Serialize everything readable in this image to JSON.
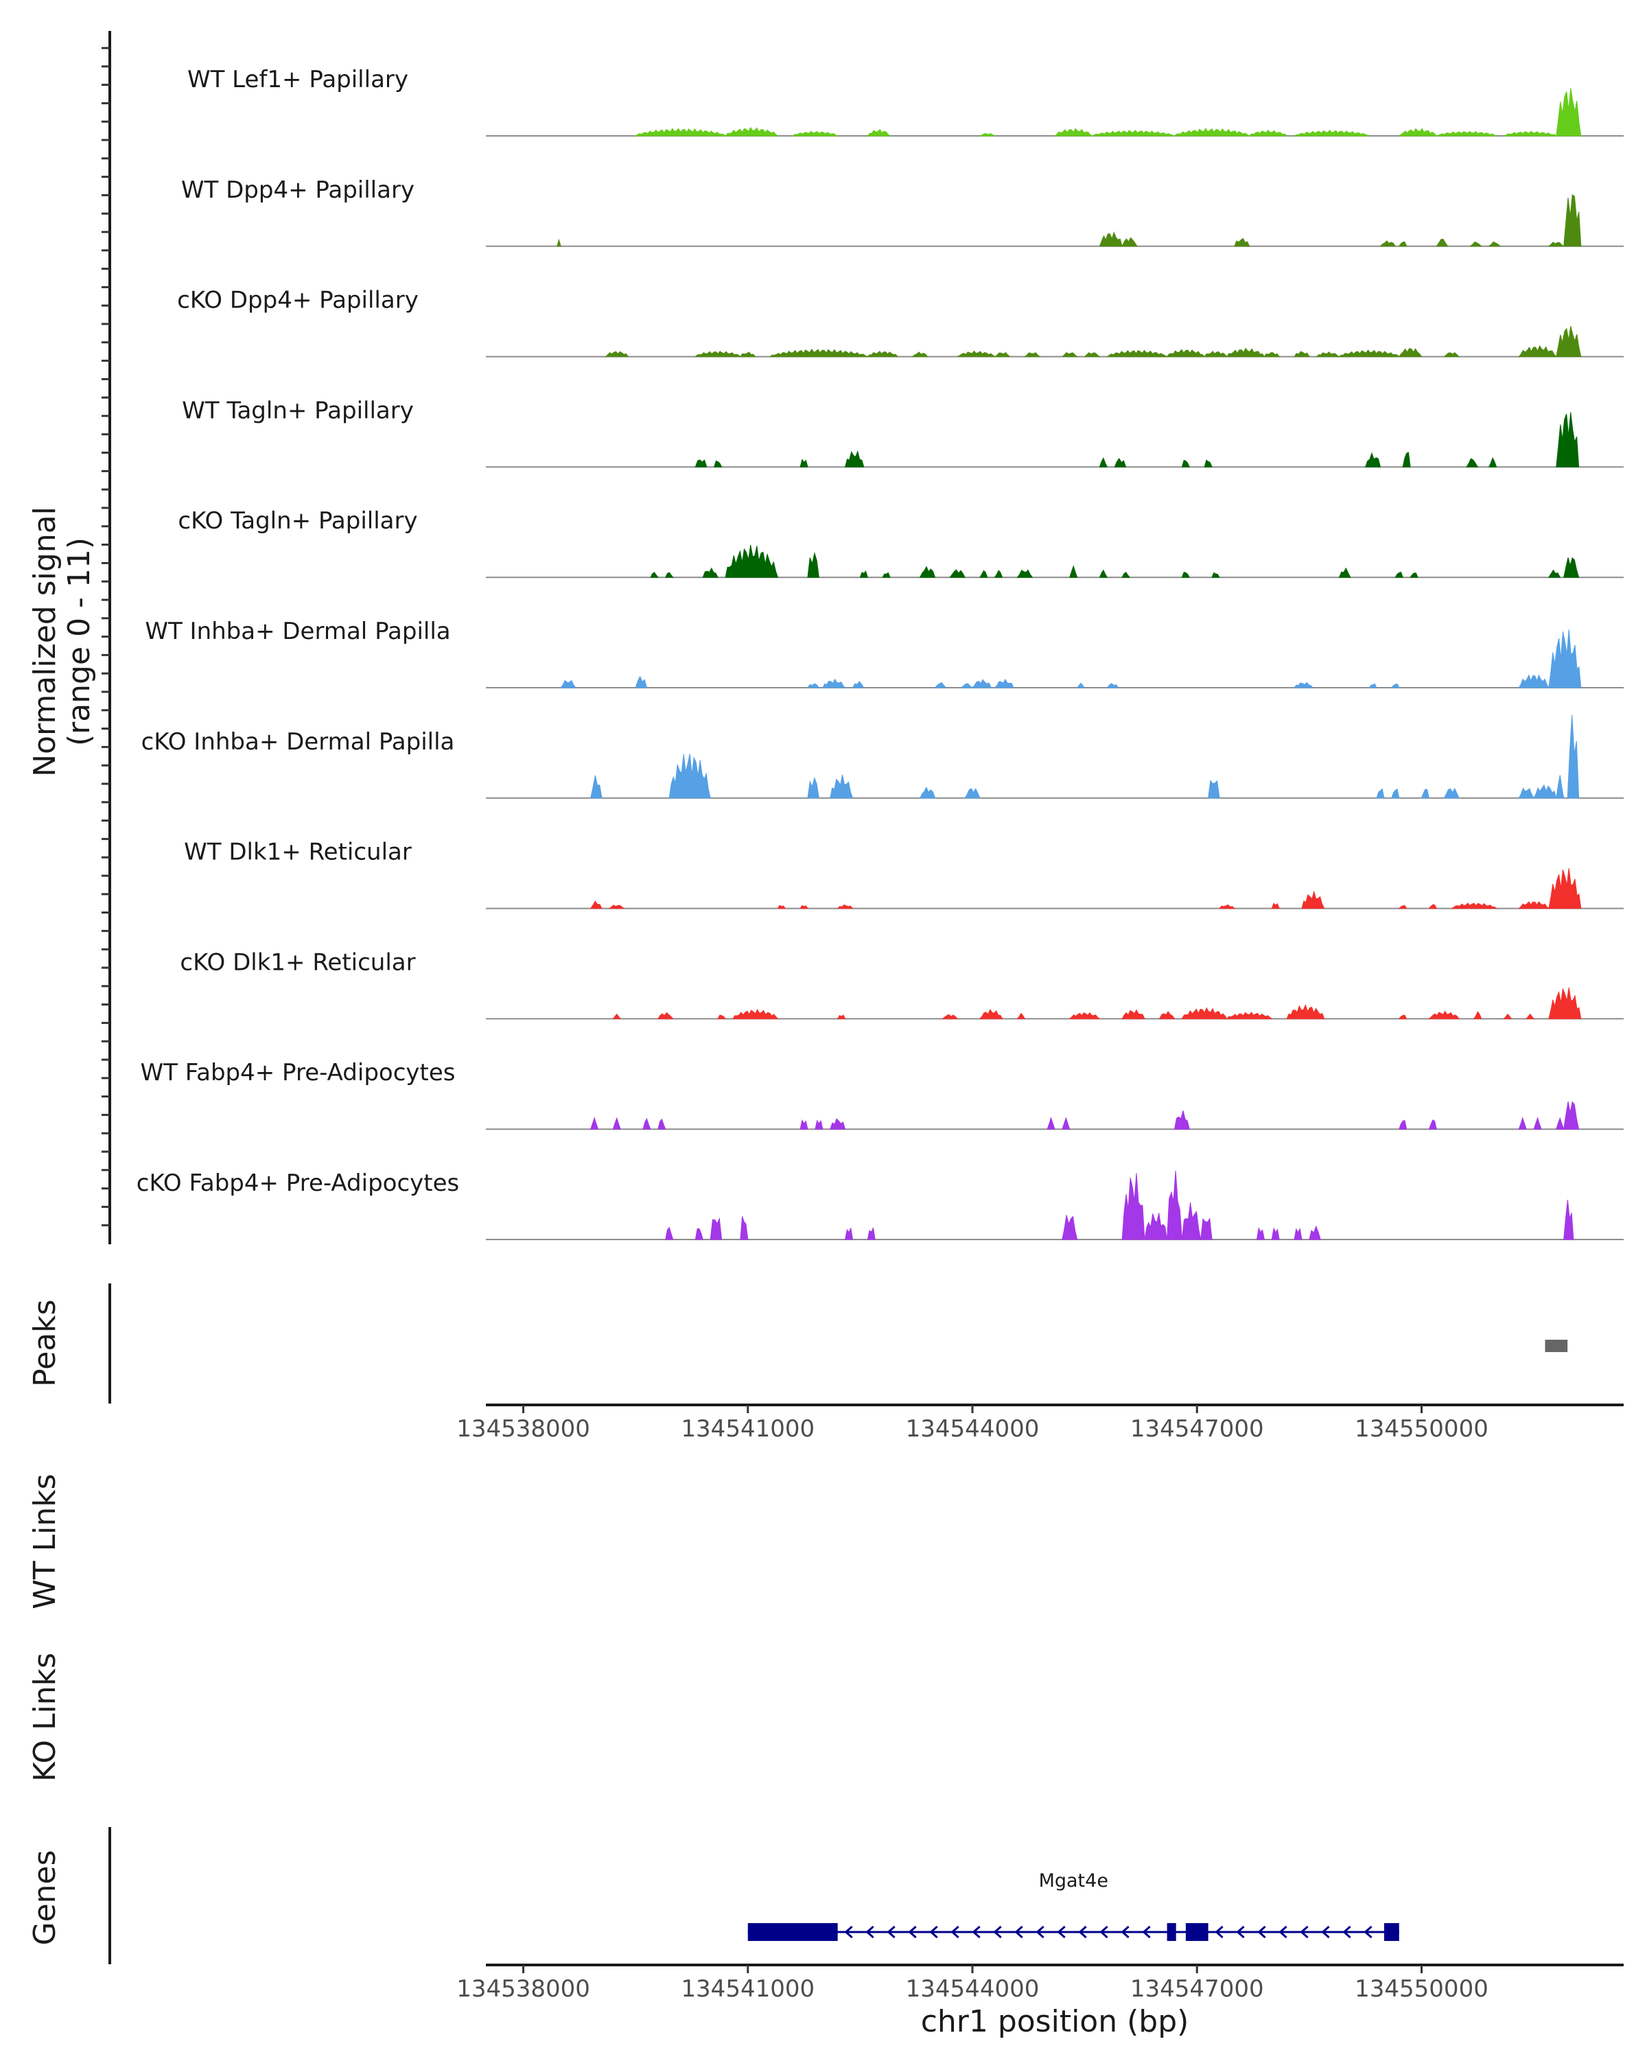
{
  "chart_data": {
    "type": "area",
    "title": "",
    "chromosome": "chr1",
    "xlim": [
      134537500,
      134552700
    ],
    "ylabel": "Normalized signal",
    "ylabel_range": "(range 0 - 11)",
    "y_range": [
      0,
      11
    ],
    "xlabel": "chr1 position (bp)",
    "x_ticks": [
      {
        "value": 134538000,
        "label": "134538000"
      },
      {
        "value": 134541000,
        "label": "134541000"
      },
      {
        "value": 134544000,
        "label": "134544000"
      },
      {
        "value": 134547000,
        "label": "134547000"
      },
      {
        "value": 134550000,
        "label": "134550000"
      }
    ],
    "series": [
      {
        "name": "WT Lef1+ Papillary",
        "color": "#66CC1A",
        "peaks": [
          [
            134539500,
            134540700,
            0.8
          ],
          [
            134540700,
            134541400,
            0.9
          ],
          [
            134541600,
            134542200,
            0.5
          ],
          [
            134542600,
            134542900,
            0.7
          ],
          [
            134544100,
            134544300,
            0.3
          ],
          [
            134545100,
            134545600,
            0.8
          ],
          [
            134545600,
            134546700,
            0.6
          ],
          [
            134546700,
            134547700,
            0.8
          ],
          [
            134547700,
            134548200,
            0.6
          ],
          [
            134548300,
            134549300,
            0.6
          ],
          [
            134549700,
            134550200,
            0.8
          ],
          [
            134550200,
            134551000,
            0.5
          ],
          [
            134551100,
            134551800,
            0.5
          ],
          [
            134551800,
            134552130,
            5.5
          ]
        ]
      },
      {
        "name": "WT Dpp4+ Papillary",
        "color": "#4F8A10",
        "peaks": [
          [
            134538450,
            134538500,
            0.7
          ],
          [
            134545700,
            134546000,
            1.6
          ],
          [
            134546000,
            134546200,
            1.0
          ],
          [
            134547500,
            134547700,
            0.9
          ],
          [
            134549450,
            134549650,
            0.6
          ],
          [
            134549700,
            134549800,
            0.6
          ],
          [
            134550200,
            134550350,
            0.9
          ],
          [
            134550650,
            134550800,
            0.5
          ],
          [
            134550900,
            134551050,
            0.5
          ],
          [
            134551700,
            134551900,
            0.5
          ],
          [
            134551900,
            134552130,
            6.5
          ]
        ]
      },
      {
        "name": "cKO Dpp4+ Papillary",
        "color": "#4F8A10",
        "peaks": [
          [
            134539100,
            134539400,
            0.6
          ],
          [
            134540300,
            134540900,
            0.6
          ],
          [
            134540900,
            134541100,
            0.5
          ],
          [
            134541300,
            134542600,
            0.8
          ],
          [
            134542600,
            134543000,
            0.6
          ],
          [
            134543200,
            134543400,
            0.5
          ],
          [
            134543800,
            134544300,
            0.6
          ],
          [
            134544300,
            134544500,
            0.5
          ],
          [
            134544700,
            134544900,
            0.5
          ],
          [
            134545200,
            134545400,
            0.5
          ],
          [
            134545500,
            134545700,
            0.5
          ],
          [
            134545800,
            134546600,
            0.7
          ],
          [
            134546600,
            134547100,
            0.8
          ],
          [
            134547100,
            134547400,
            0.6
          ],
          [
            134547400,
            134547900,
            0.9
          ],
          [
            134547900,
            134548100,
            0.5
          ],
          [
            134548300,
            134548500,
            0.6
          ],
          [
            134548600,
            134548900,
            0.5
          ],
          [
            134548900,
            134549700,
            0.7
          ],
          [
            134549700,
            134550000,
            1.0
          ],
          [
            134550300,
            134550500,
            0.5
          ],
          [
            134551300,
            134551800,
            1.2
          ],
          [
            134551800,
            134552130,
            3.5
          ]
        ]
      },
      {
        "name": "WT Tagln+ Papillary",
        "color": "#006400",
        "peaks": [
          [
            134540300,
            134540450,
            1.0
          ],
          [
            134540550,
            134540650,
            0.8
          ],
          [
            134541700,
            134541800,
            1.0
          ],
          [
            134542300,
            134542550,
            1.8
          ],
          [
            134545700,
            134545800,
            1.0
          ],
          [
            134545900,
            134546050,
            1.0
          ],
          [
            134546800,
            134546900,
            0.9
          ],
          [
            134547100,
            134547200,
            0.9
          ],
          [
            134549250,
            134549450,
            1.5
          ],
          [
            134549750,
            134549850,
            2.0
          ],
          [
            134550600,
            134550750,
            1.0
          ],
          [
            134550900,
            134551000,
            1.0
          ],
          [
            134551800,
            134552100,
            6.5
          ]
        ]
      },
      {
        "name": "cKO Tagln+ Papillary",
        "color": "#006400",
        "peaks": [
          [
            134539700,
            134539800,
            0.6
          ],
          [
            134539900,
            134540000,
            0.6
          ],
          [
            134540400,
            134540600,
            1.0
          ],
          [
            134540700,
            134541400,
            3.5
          ],
          [
            134541800,
            134541950,
            3.0
          ],
          [
            134542500,
            134542600,
            0.8
          ],
          [
            134542800,
            134542900,
            0.6
          ],
          [
            134543300,
            134543500,
            1.2
          ],
          [
            134543700,
            134543900,
            0.9
          ],
          [
            134544100,
            134544200,
            0.8
          ],
          [
            134544300,
            134544400,
            0.8
          ],
          [
            134544600,
            134544800,
            0.9
          ],
          [
            134545300,
            134545400,
            1.2
          ],
          [
            134545700,
            134545800,
            0.8
          ],
          [
            134546000,
            134546100,
            0.6
          ],
          [
            134546800,
            134546900,
            0.7
          ],
          [
            134547200,
            134547300,
            0.6
          ],
          [
            134548900,
            134549050,
            1.0
          ],
          [
            134549650,
            134549750,
            0.7
          ],
          [
            134549850,
            134549950,
            0.6
          ],
          [
            134551700,
            134551850,
            0.8
          ],
          [
            134551900,
            134552100,
            2.5
          ]
        ]
      },
      {
        "name": "WT Inhba+ Dermal Papilla",
        "color": "#56A0E5",
        "peaks": [
          [
            134538500,
            134538700,
            0.9
          ],
          [
            134539500,
            134539650,
            1.3
          ],
          [
            134541800,
            134541950,
            0.5
          ],
          [
            134542000,
            134542300,
            0.9
          ],
          [
            134542400,
            134542550,
            0.7
          ],
          [
            134543500,
            134543650,
            0.6
          ],
          [
            134543850,
            134544000,
            0.5
          ],
          [
            134544000,
            134544250,
            0.9
          ],
          [
            134544300,
            134544550,
            0.9
          ],
          [
            134545400,
            134545500,
            0.5
          ],
          [
            134545800,
            134545950,
            0.5
          ],
          [
            134548300,
            134548550,
            0.6
          ],
          [
            134549300,
            134549400,
            0.5
          ],
          [
            134549600,
            134549700,
            0.5
          ],
          [
            134551300,
            134551700,
            1.5
          ],
          [
            134551700,
            134552130,
            6.5
          ]
        ]
      },
      {
        "name": "cKO Inhba+ Dermal Papilla",
        "color": "#56A0E5",
        "peaks": [
          [
            134538900,
            134539050,
            2.5
          ],
          [
            134539950,
            134540500,
            5.0
          ],
          [
            134541800,
            134541950,
            2.5
          ],
          [
            134542100,
            134542400,
            2.5
          ],
          [
            134543300,
            134543500,
            1.2
          ],
          [
            134543900,
            134544100,
            1.2
          ],
          [
            134547150,
            134547300,
            2.5
          ],
          [
            134549400,
            134549500,
            1.2
          ],
          [
            134549600,
            134549700,
            1.2
          ],
          [
            134550000,
            134550100,
            1.2
          ],
          [
            134550300,
            134550500,
            1.2
          ],
          [
            134551300,
            134551500,
            1.2
          ],
          [
            134551500,
            134551800,
            1.5
          ],
          [
            134551800,
            134551900,
            2.5
          ],
          [
            134551950,
            134552100,
            9.5
          ]
        ]
      },
      {
        "name": "WT Dlk1+ Reticular",
        "color": "#F2302C",
        "peaks": [
          [
            134538900,
            134539050,
            0.8
          ],
          [
            134539150,
            134539350,
            0.4
          ],
          [
            134541400,
            134541500,
            0.4
          ],
          [
            134541700,
            134541800,
            0.4
          ],
          [
            134542200,
            134542400,
            0.4
          ],
          [
            134547300,
            134547500,
            0.4
          ],
          [
            134548000,
            134548100,
            0.7
          ],
          [
            134548400,
            134548700,
            1.8
          ],
          [
            134549700,
            134549800,
            0.4
          ],
          [
            134550100,
            134550200,
            0.5
          ],
          [
            134550400,
            134551000,
            0.6
          ],
          [
            134551300,
            134551700,
            0.8
          ],
          [
            134551700,
            134552130,
            4.5
          ]
        ]
      },
      {
        "name": "cKO Dlk1+ Reticular",
        "color": "#F2302C",
        "peaks": [
          [
            134539200,
            134539300,
            0.5
          ],
          [
            134539800,
            134540000,
            0.7
          ],
          [
            134540600,
            134540700,
            0.5
          ],
          [
            134540800,
            134541400,
            1.0
          ],
          [
            134542200,
            134542300,
            0.5
          ],
          [
            134543600,
            134543800,
            0.5
          ],
          [
            134544100,
            134544400,
            1.0
          ],
          [
            134544600,
            134544700,
            0.6
          ],
          [
            134545300,
            134545700,
            0.7
          ],
          [
            134546000,
            134546300,
            1.0
          ],
          [
            134546500,
            134546700,
            0.8
          ],
          [
            134546800,
            134547400,
            1.2
          ],
          [
            134547400,
            134548000,
            0.7
          ],
          [
            134548200,
            134548700,
            1.5
          ],
          [
            134549700,
            134549800,
            0.5
          ],
          [
            134550100,
            134550500,
            0.8
          ],
          [
            134550700,
            134550800,
            0.8
          ],
          [
            134551100,
            134551200,
            0.5
          ],
          [
            134551400,
            134551500,
            0.5
          ],
          [
            134551700,
            134552130,
            3.5
          ]
        ]
      },
      {
        "name": "WT Fabp4+ Pre-Adipocytes",
        "color": "#A437E8",
        "peaks": [
          [
            134538900,
            134539000,
            1.2
          ],
          [
            134539200,
            134539300,
            1.2
          ],
          [
            134539600,
            134539700,
            1.2
          ],
          [
            134539800,
            134539900,
            1.2
          ],
          [
            134541700,
            134541800,
            1.2
          ],
          [
            134541900,
            134542000,
            1.2
          ],
          [
            134542100,
            134542300,
            1.2
          ],
          [
            134545000,
            134545100,
            1.2
          ],
          [
            134545200,
            134545300,
            1.2
          ],
          [
            134546700,
            134546900,
            2.0
          ],
          [
            134549700,
            134549800,
            1.2
          ],
          [
            134550100,
            134550200,
            1.2
          ],
          [
            134551300,
            134551400,
            1.2
          ],
          [
            134551500,
            134551600,
            1.2
          ],
          [
            134551800,
            134551900,
            1.2
          ],
          [
            134551900,
            134552100,
            3.5
          ]
        ]
      },
      {
        "name": "cKO Fabp4+ Pre-Adipocytes",
        "color": "#A437E8",
        "peaks": [
          [
            134539900,
            134540000,
            1.5
          ],
          [
            134540300,
            134540400,
            1.5
          ],
          [
            134540500,
            134540650,
            3.0
          ],
          [
            134540900,
            134541000,
            3.0
          ],
          [
            134542300,
            134542400,
            1.5
          ],
          [
            134542600,
            134542700,
            1.5
          ],
          [
            134545200,
            134545400,
            3.0
          ],
          [
            134546000,
            134546300,
            7.5
          ],
          [
            134546300,
            134546600,
            3.0
          ],
          [
            134546600,
            134546800,
            7.5
          ],
          [
            134546800,
            134547050,
            4.0
          ],
          [
            134547050,
            134547200,
            3.0
          ],
          [
            134547800,
            134547900,
            1.5
          ],
          [
            134548000,
            134548100,
            1.5
          ],
          [
            134548300,
            134548400,
            1.5
          ],
          [
            134548500,
            134548650,
            1.5
          ],
          [
            134551900,
            134552030,
            4.5
          ]
        ]
      }
    ],
    "peak_track": {
      "label": "Peaks",
      "color": "#666666",
      "regions": [
        [
          134551650,
          134551950
        ]
      ]
    },
    "link_tracks": [
      {
        "label": "WT Links",
        "links": []
      },
      {
        "label": "KO Links",
        "links": []
      }
    ],
    "gene_track": {
      "label": "Genes",
      "color": "#00008B",
      "genes": [
        {
          "name": "Mgat4e",
          "start": 134541000,
          "end": 134549700,
          "strand": "-",
          "exons": [
            [
              134541000,
              134542200
            ],
            [
              134546600,
              134546720
            ],
            [
              134546850,
              134547150
            ],
            [
              134549500,
              134549700
            ]
          ]
        }
      ]
    }
  }
}
